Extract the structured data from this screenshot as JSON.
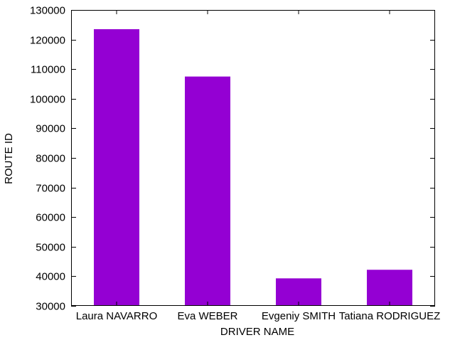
{
  "chart_data": {
    "type": "bar",
    "title": "",
    "xlabel": "DRIVER NAME",
    "ylabel": "ROUTE ID",
    "categories": [
      "Laura NAVARRO",
      "Eva WEBER",
      "Evgeniy SMITH",
      "Tatiana RODRIGUEZ"
    ],
    "values": [
      123500,
      107500,
      39300,
      42200
    ],
    "ylim": [
      30000,
      130000
    ],
    "yticks": [
      30000,
      40000,
      50000,
      60000,
      70000,
      80000,
      90000,
      100000,
      110000,
      120000,
      130000
    ],
    "bar_color": "#9400d3",
    "grid": false,
    "legend": "none"
  }
}
